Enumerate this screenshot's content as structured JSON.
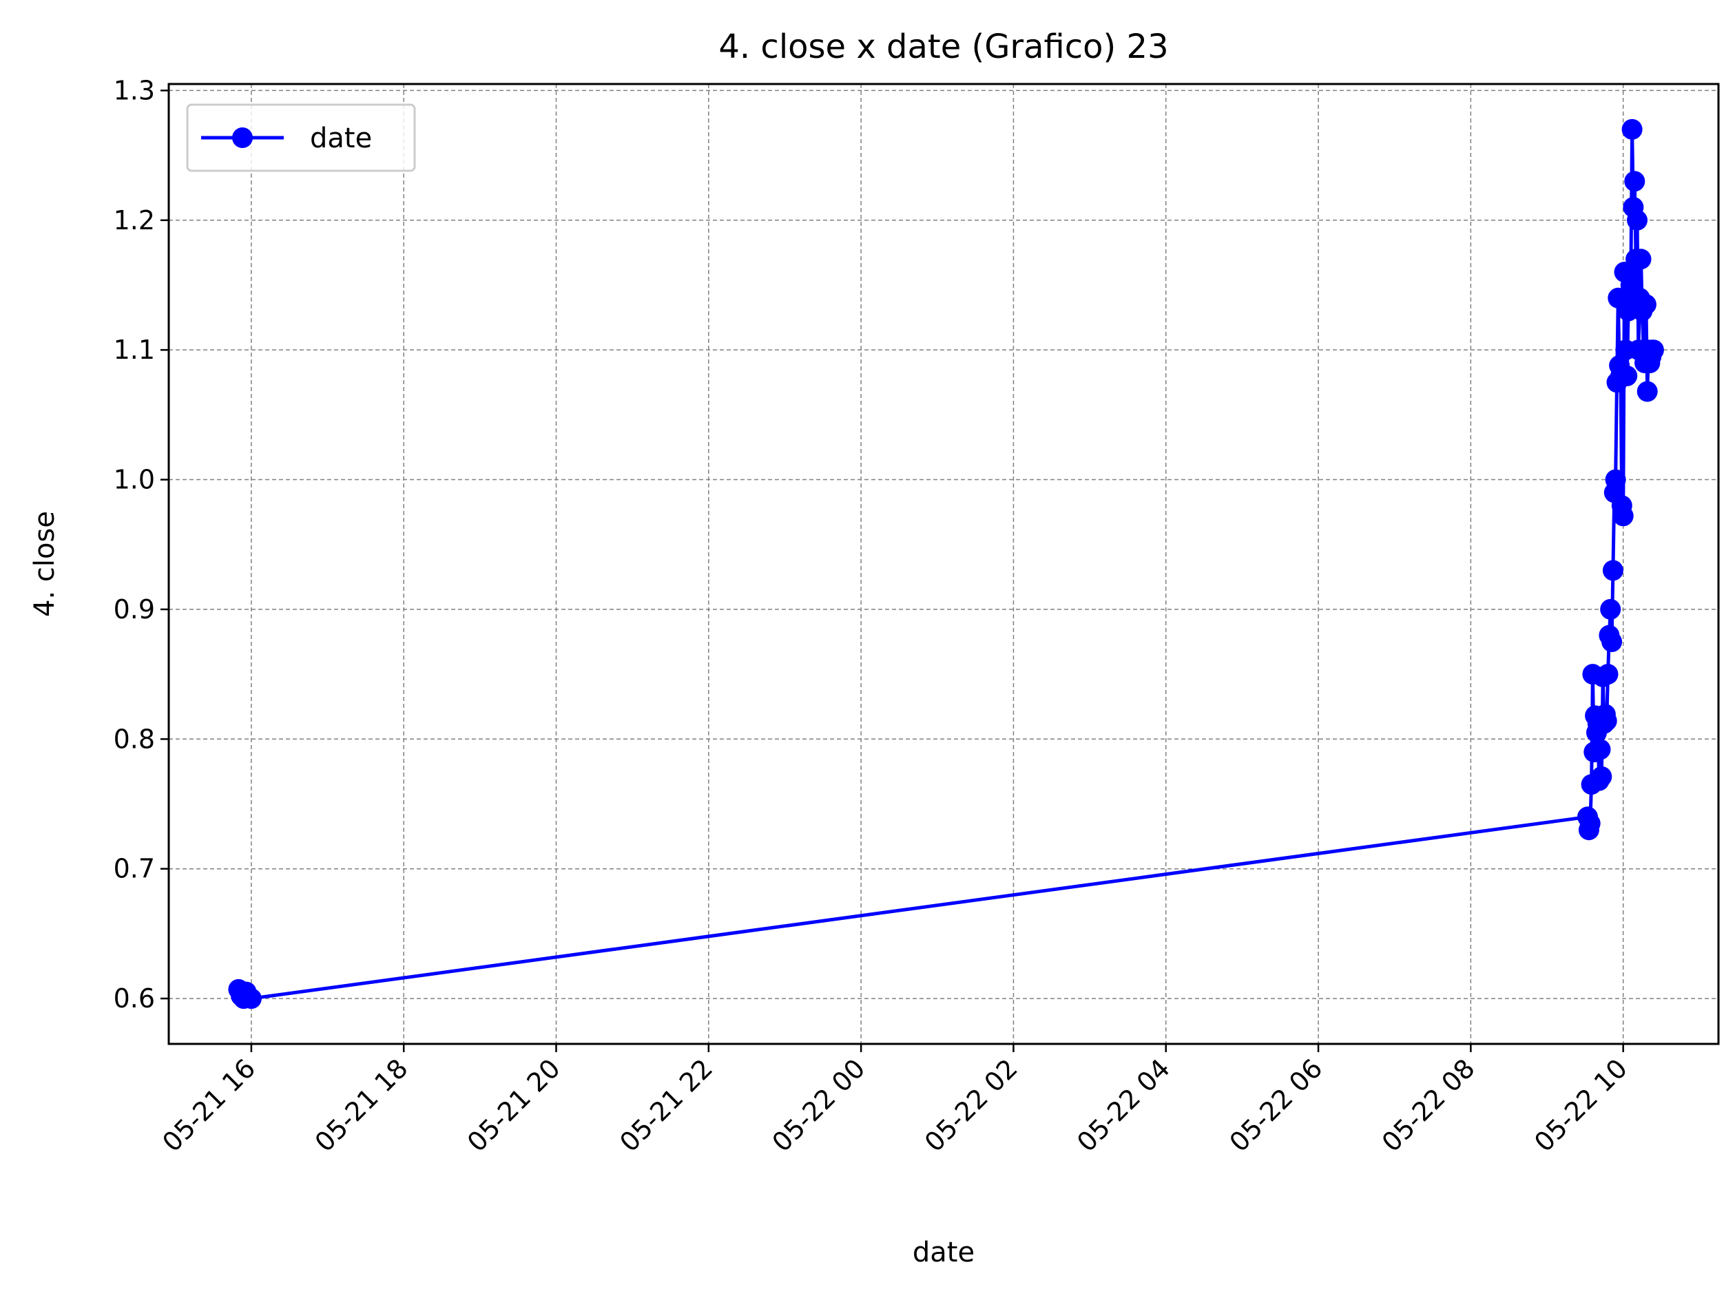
{
  "chart_data": {
    "type": "line",
    "title": "4. close x date (Grafico) 23",
    "xlabel": "date",
    "ylabel": "4. close",
    "x_axis_kind": "datetime",
    "xlim": [
      "2023-05-21 14:55",
      "2023-05-22 11:15"
    ],
    "ylim": [
      0.565,
      1.305
    ],
    "x_ticks": [
      "05-21 16",
      "05-21 18",
      "05-21 20",
      "05-21 22",
      "05-22 00",
      "05-22 02",
      "05-22 04",
      "05-22 06",
      "05-22 08",
      "05-22 10"
    ],
    "y_ticks": [
      "0.6",
      "0.7",
      "0.8",
      "0.9",
      "1.0",
      "1.1",
      "1.2",
      "1.3"
    ],
    "grid": true,
    "grid_style": "dashed",
    "legend_position": "top-left",
    "colors": {
      "series": "#0000ff",
      "grid": "#808080",
      "axes": "#000000"
    },
    "series": [
      {
        "name": "date",
        "marker": "circle",
        "x": [
          "2023-05-21 15:50",
          "2023-05-21 15:52",
          "2023-05-21 15:54",
          "2023-05-21 15:56",
          "2023-05-21 15:58",
          "2023-05-21 16:00",
          "2023-05-22 09:32",
          "2023-05-22 09:33",
          "2023-05-22 09:34",
          "2023-05-22 09:35",
          "2023-05-22 09:36",
          "2023-05-22 09:37",
          "2023-05-22 09:38",
          "2023-05-22 09:39",
          "2023-05-22 09:40",
          "2023-05-22 09:41",
          "2023-05-22 09:42",
          "2023-05-22 09:43",
          "2023-05-22 09:44",
          "2023-05-22 09:45",
          "2023-05-22 09:46",
          "2023-05-22 09:47",
          "2023-05-22 09:48",
          "2023-05-22 09:49",
          "2023-05-22 09:50",
          "2023-05-22 09:51",
          "2023-05-22 09:52",
          "2023-05-22 09:53",
          "2023-05-22 09:54",
          "2023-05-22 09:55",
          "2023-05-22 09:56",
          "2023-05-22 09:57",
          "2023-05-22 09:58",
          "2023-05-22 09:59",
          "2023-05-22 10:00",
          "2023-05-22 10:01",
          "2023-05-22 10:02",
          "2023-05-22 10:03",
          "2023-05-22 10:04",
          "2023-05-22 10:05",
          "2023-05-22 10:06",
          "2023-05-22 10:07",
          "2023-05-22 10:08",
          "2023-05-22 10:09",
          "2023-05-22 10:10",
          "2023-05-22 10:11",
          "2023-05-22 10:12",
          "2023-05-22 10:13",
          "2023-05-22 10:14",
          "2023-05-22 10:15",
          "2023-05-22 10:16",
          "2023-05-22 10:17",
          "2023-05-22 10:18",
          "2023-05-22 10:19",
          "2023-05-22 10:20",
          "2023-05-22 10:21",
          "2023-05-22 10:22",
          "2023-05-22 10:23",
          "2023-05-22 10:24"
        ],
        "y": [
          0.607,
          0.602,
          0.6,
          0.605,
          0.601,
          0.6,
          0.74,
          0.73,
          0.735,
          0.765,
          0.85,
          0.79,
          0.818,
          0.805,
          0.812,
          0.768,
          0.792,
          0.771,
          0.848,
          0.812,
          0.819,
          0.814,
          0.85,
          0.88,
          0.9,
          0.875,
          0.93,
          0.99,
          1.0,
          1.075,
          1.14,
          1.088,
          1.08,
          0.98,
          0.972,
          1.16,
          1.1,
          1.08,
          1.13,
          1.16,
          1.15,
          1.27,
          1.21,
          1.23,
          1.17,
          1.2,
          1.1,
          1.14,
          1.17,
          1.13,
          1.1,
          1.09,
          1.135,
          1.068,
          1.1,
          1.09,
          1.095,
          1.1,
          1.1
        ]
      }
    ]
  }
}
